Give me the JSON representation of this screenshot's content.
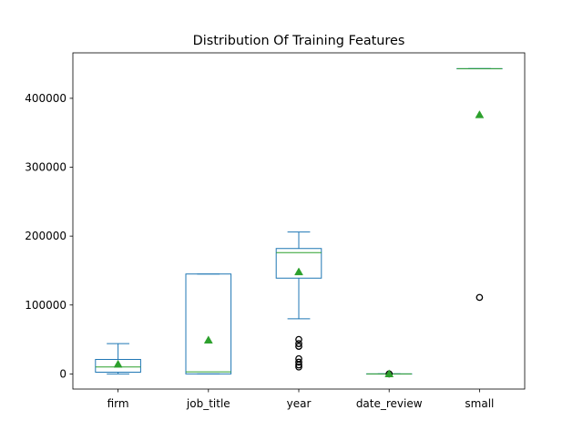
{
  "chart_data": {
    "type": "box",
    "title": "Distribution Of Training Features",
    "xlabel": "",
    "ylabel": "",
    "ylim": [
      -22000,
      466000
    ],
    "grid": false,
    "yticks": [
      0,
      100000,
      200000,
      300000,
      400000
    ],
    "ytick_labels": [
      "0",
      "100000",
      "200000",
      "300000",
      "400000"
    ],
    "categories": [
      "firm",
      "job_title",
      "year",
      "date_review",
      "small"
    ],
    "colors": {
      "box": "#1f77b4",
      "median": "#2ca02c",
      "mean_marker": "#2ca02c",
      "flier": "#000000"
    },
    "series": [
      {
        "name": "firm",
        "whisker_low": 0,
        "q1": 2500,
        "median": 10000,
        "q3": 21000,
        "whisker_high": 44000,
        "mean": 14000,
        "fliers": []
      },
      {
        "name": "job_title",
        "whisker_low": 0,
        "q1": 0,
        "median": 3000,
        "q3": 145000,
        "whisker_high": 145000,
        "mean": 49000,
        "fliers": []
      },
      {
        "name": "year",
        "whisker_low": 80000,
        "q1": 139000,
        "median": 176000,
        "q3": 182000,
        "whisker_high": 206000,
        "mean": 148000,
        "fliers": [
          10000,
          13000,
          17000,
          22000,
          40000,
          44000,
          50000
        ]
      },
      {
        "name": "date_review",
        "whisker_low": 0,
        "q1": 0,
        "median": 0,
        "q3": 0,
        "whisker_high": 0,
        "mean": 0,
        "fliers": [
          0
        ]
      },
      {
        "name": "small",
        "whisker_low": 443000,
        "q1": 443000,
        "median": 443000,
        "q3": 443000,
        "whisker_high": 443000,
        "mean": 376000,
        "fliers": [
          111000
        ]
      }
    ]
  }
}
